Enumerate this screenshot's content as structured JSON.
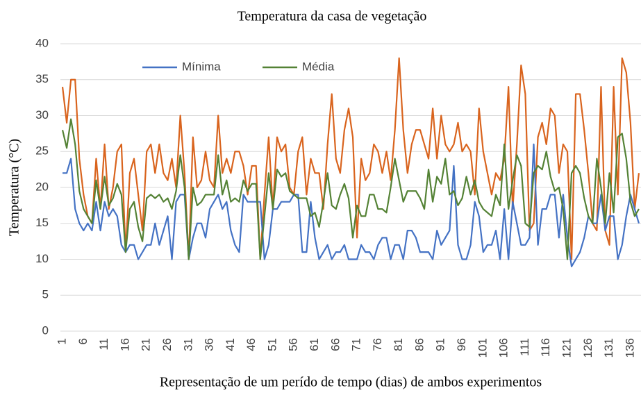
{
  "chart_data": {
    "type": "line",
    "title": "Temperatura da casa de vegetação",
    "y_label": "Temperatura (°C)",
    "x_label": "Representação de um perído de tempo (dias) de ambos experimentos",
    "categories": [
      1,
      null,
      null,
      null,
      null,
      6,
      null,
      null,
      null,
      null,
      11,
      null,
      null,
      null,
      null,
      16,
      null,
      null,
      null,
      null,
      21,
      null,
      null,
      null,
      null,
      26,
      null,
      null,
      null,
      null,
      31,
      null,
      null,
      null,
      null,
      36,
      null,
      null,
      null,
      null,
      41,
      null,
      null,
      null,
      null,
      46,
      null,
      null,
      null,
      null,
      51,
      null,
      null,
      null,
      null,
      56,
      null,
      null,
      null,
      null,
      61,
      null,
      null,
      null,
      null,
      66,
      null,
      null,
      null,
      null,
      71,
      null,
      null,
      null,
      null,
      76,
      null,
      null,
      null,
      null,
      81,
      null,
      null,
      null,
      null,
      86,
      null,
      null,
      null,
      null,
      91,
      null,
      null,
      null,
      null,
      96,
      null,
      null,
      null,
      null,
      101,
      null,
      null,
      null,
      null,
      106,
      null,
      null,
      null,
      null,
      111,
      null,
      null,
      null,
      null,
      116,
      null,
      null,
      null,
      null,
      121,
      null,
      null,
      null,
      null,
      126,
      null,
      null,
      null,
      null,
      131,
      null,
      null,
      null,
      null,
      136,
      null,
      null
    ],
    "series": [
      {
        "color": "#d9641e",
        "values": [
          34,
          29,
          35,
          35,
          24,
          19,
          16,
          15,
          24,
          17,
          26,
          17,
          20,
          25,
          26,
          11,
          22,
          24,
          19,
          14,
          25,
          26,
          22,
          26,
          22,
          21,
          24,
          20,
          30,
          22,
          10,
          27,
          20,
          21,
          25,
          21,
          20,
          30,
          22,
          24,
          22,
          25,
          25,
          23,
          19,
          23,
          23,
          10,
          19,
          27,
          17,
          27,
          25,
          26,
          20,
          19,
          25,
          27,
          19,
          24,
          22,
          22,
          17,
          26,
          33,
          24,
          22,
          28,
          31,
          27,
          13,
          24,
          21,
          22,
          26,
          25,
          22,
          25,
          21,
          28,
          38,
          28,
          22,
          26,
          28,
          28,
          26,
          24,
          31,
          24,
          30,
          26,
          25,
          26,
          29,
          25,
          26,
          25,
          19,
          31,
          25,
          22,
          19,
          22,
          21,
          24,
          34,
          17,
          26,
          37,
          33,
          14,
          15,
          27,
          29,
          26,
          31,
          30,
          22,
          26,
          25,
          10,
          33,
          33,
          28,
          22,
          15,
          14,
          34,
          14,
          12,
          34,
          19,
          38,
          36,
          29,
          17,
          22
        ]
      },
      {
        "name": "Mínima",
        "color": "#4472c4",
        "values": [
          22,
          22,
          24,
          17,
          15,
          14,
          15,
          14,
          18,
          14,
          18,
          16,
          17,
          16,
          12,
          11,
          12,
          12,
          10,
          11,
          12,
          12,
          15,
          12,
          14,
          16,
          10,
          18,
          19,
          19,
          10,
          13,
          15,
          15,
          13,
          17,
          18,
          19,
          17,
          18,
          14,
          12,
          11,
          19,
          18,
          18,
          18,
          18,
          10,
          12,
          17,
          17,
          18,
          18,
          18,
          19,
          19,
          11,
          11,
          18,
          13,
          10,
          11,
          12,
          10,
          11,
          11,
          12,
          10,
          10,
          10,
          12,
          11,
          11,
          10,
          12,
          13,
          13,
          10,
          12,
          12,
          10,
          14,
          14,
          13,
          11,
          11,
          11,
          10,
          14,
          12,
          13,
          14,
          23,
          12,
          10,
          10,
          12,
          18,
          16,
          11,
          12,
          12,
          14,
          10,
          17,
          10,
          18,
          15,
          12,
          12,
          13,
          26,
          12,
          17,
          17,
          19,
          19,
          13,
          19,
          13,
          9,
          10,
          11,
          13,
          16,
          15,
          15,
          19,
          14,
          16,
          16,
          10,
          12,
          16,
          19,
          17,
          15
        ]
      },
      {
        "name": "Média",
        "color": "#548235",
        "values": [
          28,
          25.5,
          29.5,
          26,
          19.5,
          17,
          16,
          15,
          21,
          17,
          21.5,
          17.5,
          18.5,
          20.5,
          19,
          11,
          17,
          18,
          14.5,
          12.5,
          18.5,
          19,
          18.5,
          19,
          18,
          18.5,
          17,
          19.5,
          24.5,
          20,
          10,
          20,
          17.5,
          18,
          19,
          19,
          19,
          24.5,
          19,
          21,
          18,
          18.5,
          18,
          21,
          19.5,
          20.5,
          20.5,
          10,
          16,
          22,
          17,
          22.5,
          21.5,
          22,
          19.5,
          19,
          18.5,
          18.5,
          18.5,
          16,
          16.5,
          14.5,
          18,
          22,
          17.5,
          17,
          19,
          20.5,
          18.5,
          13,
          17.5,
          16,
          16,
          19,
          19,
          17,
          17,
          16.5,
          20,
          24,
          21,
          18,
          19.5,
          19.5,
          19.5,
          18.5,
          17,
          22.5,
          18,
          21.5,
          20.5,
          24,
          19,
          19.5,
          17.5,
          18.5,
          21.5,
          19,
          21,
          18,
          17,
          16.5,
          16,
          19,
          17.5,
          26,
          17,
          21,
          24.5,
          23,
          15,
          14.5,
          22,
          23,
          22.5,
          25,
          21.5,
          19.5,
          20,
          17,
          10,
          22,
          23,
          22,
          18.5,
          16,
          15,
          24,
          20,
          15,
          22,
          16.5,
          27,
          27.5,
          24,
          18,
          16,
          17
        ]
      }
    ],
    "ylim": [
      0,
      40
    ],
    "yticks": [
      0,
      5,
      10,
      15,
      20,
      25,
      30,
      35,
      40
    ],
    "grid": true,
    "legend": "top"
  }
}
